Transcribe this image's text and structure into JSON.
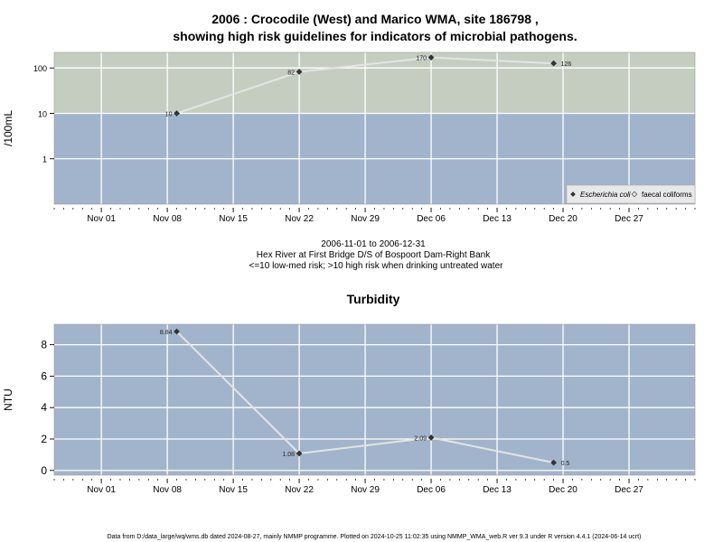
{
  "title_line1": "2006 : Crocodile (West) and Marico WMA, site 186798 ,",
  "title_line2": "showing high risk guidelines for indicators of microbial pathogens.",
  "subtitle": {
    "date_range": "2006-11-01 to 2006-12-31",
    "site": "Hex River at First Bridge D/S of Bospoort Dam-Right Bank",
    "risk_note": "<=10 low-med risk; >10 high risk when drinking untreated water"
  },
  "footer": "Data from D:/data_large/wq/wms.db dated 2024-08-27, mainly NMMP programme. Plotted on 2024-10-25 11:02:35 using NMMP_WMA_web.R ver 9.3 under R version 4.4.1 (2024-06-14 ucrt)",
  "colors": {
    "high_risk_band": "#c5cdc0",
    "low_risk_band": "#a2b4cc",
    "panel_bg": "#a2b4cc",
    "line": "#e4e4e4",
    "grid": "#ffffff",
    "point": "#333333"
  },
  "chart_data": [
    {
      "type": "line",
      "name": "microbial",
      "title": "",
      "ylabel": "/100mL",
      "xlabel": "",
      "yscale": "log10",
      "ylim": [
        0.1,
        220
      ],
      "xlim": [
        "2006-10-27",
        "2007-01-03"
      ],
      "yticks": [
        1,
        10,
        100
      ],
      "ytick_labels": [
        "1",
        "10",
        "100"
      ],
      "xticks": [
        "2006-11-01",
        "2006-11-08",
        "2006-11-15",
        "2006-11-22",
        "2006-11-29",
        "2006-12-06",
        "2006-12-13",
        "2006-12-20",
        "2006-12-27"
      ],
      "xtick_labels": [
        "Nov 01",
        "Nov 08",
        "Nov 15",
        "Nov 22",
        "Nov 29",
        "Dec 06",
        "Dec 13",
        "Dec 20",
        "Dec 27"
      ],
      "threshold": 10,
      "grid": true,
      "series": [
        {
          "name": "Escherichia coli",
          "x": [
            "2006-11-09",
            "2006-11-22",
            "2006-12-06",
            "2006-12-19"
          ],
          "y": [
            10,
            82,
            170,
            126
          ],
          "labels": [
            "10",
            "82",
            "170",
            "126"
          ],
          "label_side": [
            "left",
            "left",
            "left",
            "right"
          ]
        }
      ],
      "legend": {
        "position": "bottom-right",
        "entries": [
          "Escherichia coli",
          "faecal coliforms"
        ]
      }
    },
    {
      "type": "line",
      "name": "turbidity",
      "title": "Turbidity",
      "ylabel": "NTU",
      "xlabel": "",
      "yscale": "linear",
      "ylim": [
        -0.3,
        9.3
      ],
      "xlim": [
        "2006-10-27",
        "2007-01-03"
      ],
      "yticks": [
        0,
        2,
        4,
        6,
        8
      ],
      "ytick_labels": [
        "0",
        "2",
        "4",
        "6",
        "8"
      ],
      "xticks": [
        "2006-11-01",
        "2006-11-08",
        "2006-11-15",
        "2006-11-22",
        "2006-11-29",
        "2006-12-06",
        "2006-12-13",
        "2006-12-20",
        "2006-12-27"
      ],
      "xtick_labels": [
        "Nov 01",
        "Nov 08",
        "Nov 15",
        "Nov 22",
        "Nov 29",
        "Dec 06",
        "Dec 13",
        "Dec 20",
        "Dec 27"
      ],
      "grid": true,
      "series": [
        {
          "name": "Turbidity",
          "x": [
            "2006-11-09",
            "2006-11-22",
            "2006-12-06",
            "2006-12-19"
          ],
          "y": [
            8.84,
            1.08,
            2.09,
            0.5
          ],
          "labels": [
            "8.84",
            "1.08",
            "2.09",
            "0.5"
          ],
          "label_side": [
            "left",
            "left",
            "left",
            "right"
          ]
        }
      ]
    }
  ]
}
